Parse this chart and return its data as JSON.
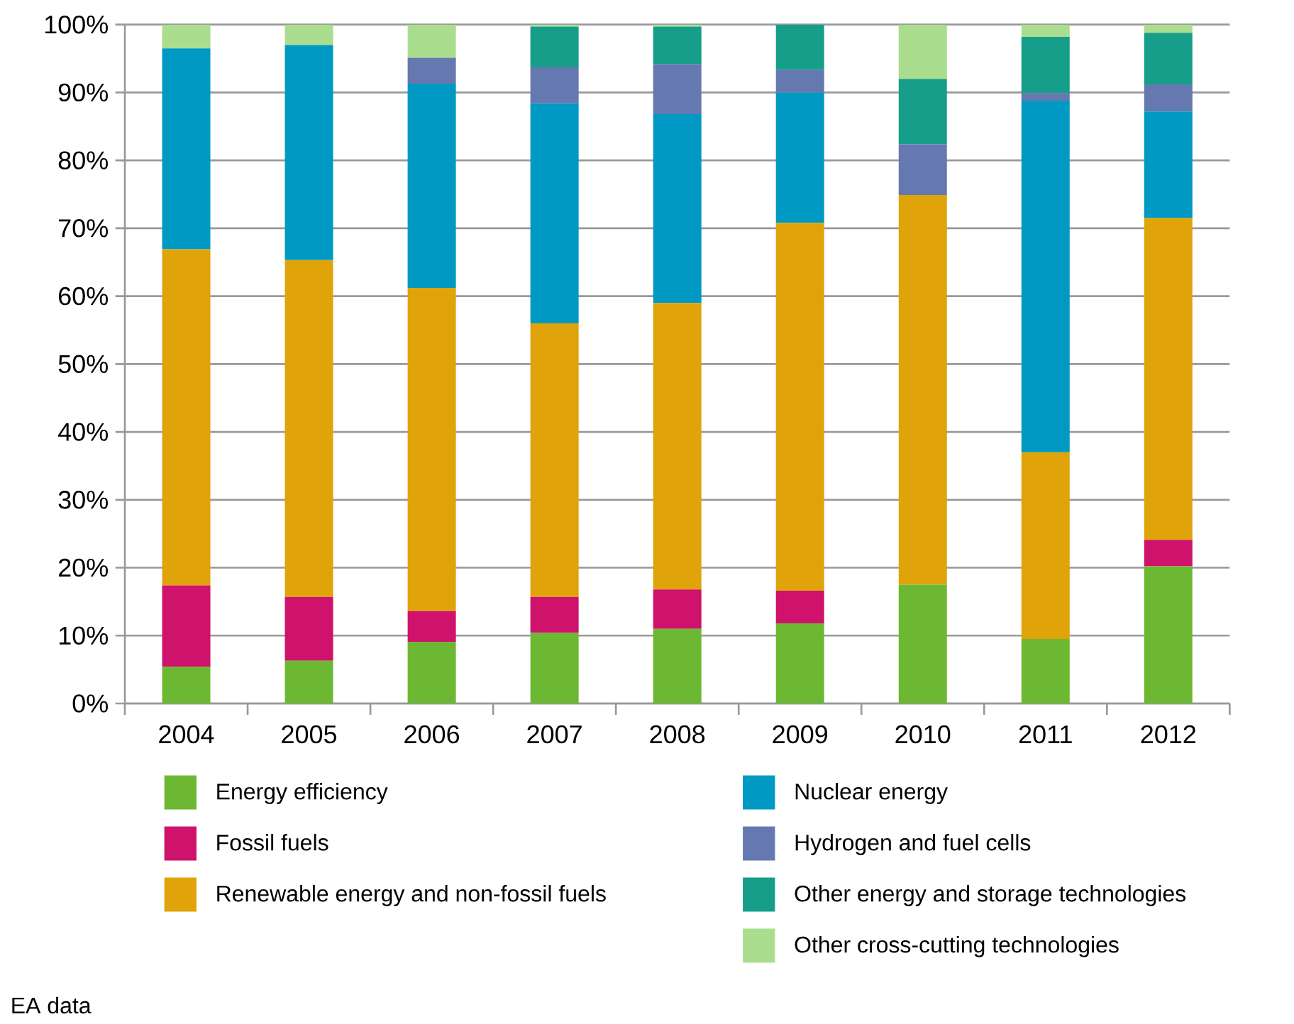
{
  "chart_data": {
    "type": "bar",
    "stacked": true,
    "categories": [
      "2004",
      "2005",
      "2006",
      "2007",
      "2008",
      "2009",
      "2010",
      "2011",
      "2012"
    ],
    "series": [
      {
        "name": "Energy efficiency",
        "color": "#6db833",
        "values": [
          5.4,
          6.3,
          9.1,
          10.4,
          11.0,
          11.8,
          17.5,
          9.5,
          20.2
        ]
      },
      {
        "name": "Fossil fuels",
        "color": "#cf126b",
        "values": [
          12.0,
          9.4,
          4.5,
          5.3,
          5.8,
          4.8,
          0,
          0,
          3.9
        ]
      },
      {
        "name": "Renewable energy and non-fossil fuels",
        "color": "#e0a30a",
        "values": [
          49.5,
          49.6,
          47.6,
          40.3,
          42.2,
          54.2,
          57.4,
          27.5,
          47.4
        ]
      },
      {
        "name": "Nuclear energy",
        "color": "#0099c4",
        "values": [
          29.6,
          31.7,
          30.1,
          32.4,
          27.8,
          19.2,
          0,
          51.8,
          15.7
        ]
      },
      {
        "name": "Hydrogen and fuel cells",
        "color": "#6678b0",
        "values": [
          0,
          0,
          3.8,
          5.3,
          7.4,
          3.3,
          7.5,
          1.1,
          4.0
        ]
      },
      {
        "name": "Other energy and storage technologies",
        "color": "#169e8a",
        "values": [
          0,
          0,
          0,
          6.0,
          5.5,
          6.7,
          9.6,
          8.3,
          7.6
        ]
      },
      {
        "name": "Other cross-cutting technologies",
        "color": "#aade8e",
        "values": [
          3.5,
          3.0,
          4.9,
          0.3,
          0.3,
          0,
          8.0,
          1.8,
          1.2
        ]
      }
    ],
    "ylim": [
      0,
      100
    ],
    "yticks": [
      {
        "value": 0,
        "label": "0%"
      },
      {
        "value": 10,
        "label": "10%"
      },
      {
        "value": 20,
        "label": "20%"
      },
      {
        "value": 30,
        "label": "30%"
      },
      {
        "value": 40,
        "label": "40%"
      },
      {
        "value": 50,
        "label": "50%"
      },
      {
        "value": 60,
        "label": "60%"
      },
      {
        "value": 70,
        "label": "70%"
      },
      {
        "value": 80,
        "label": "80%"
      },
      {
        "value": 90,
        "label": "90%"
      },
      {
        "value": 100,
        "label": "100%"
      }
    ],
    "grid": "y",
    "legend": "bottom",
    "annotations": [
      "EA data"
    ]
  }
}
